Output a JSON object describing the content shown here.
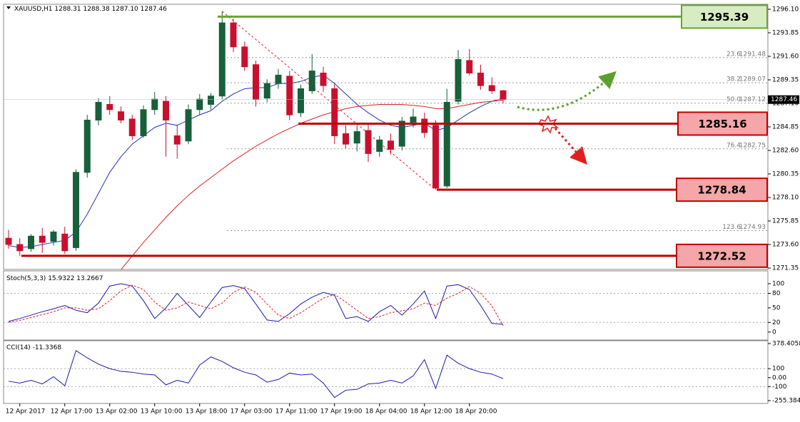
{
  "chart_data": [
    {
      "type": "candlestick",
      "title": "XAUUSD,H1",
      "ohlc_labels": [
        "1288.31",
        "1288.38",
        "1287.10",
        "1287.46"
      ],
      "categories": [
        null,
        "12 Apr 2017",
        null,
        null,
        null,
        "12 Apr 17:00",
        null,
        null,
        null,
        "13 Apr 02:00",
        null,
        null,
        null,
        "13 Apr 10:00",
        null,
        null,
        null,
        "13 Apr 18:00",
        null,
        null,
        null,
        "17 Apr 03:00",
        null,
        null,
        null,
        "17 Apr 11:00",
        null,
        null,
        null,
        "17 Apr 19:00",
        null,
        null,
        null,
        "18 Apr 04:00",
        null,
        null,
        null,
        "18 Apr 12:00",
        null,
        null,
        null,
        "18 Apr 20:00",
        null,
        null,
        null
      ],
      "open": [
        1274.2,
        1273.6,
        1273.2,
        1274.4,
        1273.9,
        1274.6,
        1273.3,
        1280.5,
        1285.5,
        1287.0,
        1286.3,
        1285.6,
        1284.0,
        1286.5,
        1287.3,
        1284.0,
        1283.5,
        1286.5,
        1287.0,
        1287.8,
        1294.8,
        1292.5,
        1290.8,
        1287.6,
        1289.0,
        1289.7,
        1286.2,
        1288.3,
        1290.0,
        1288.5,
        1284.2,
        1283.3,
        1284.5,
        1282.5,
        1283.5,
        1283.0,
        1285.3,
        1285.6,
        1285.0,
        1279.2,
        1287.3,
        1291.2,
        1290.0,
        1288.8,
        1288.31
      ],
      "high": [
        1275.0,
        1274.2,
        1274.6,
        1275.2,
        1275.0,
        1275.3,
        1280.8,
        1286.0,
        1287.6,
        1287.8,
        1286.8,
        1286.0,
        1286.9,
        1288.2,
        1287.8,
        1285.0,
        1287.0,
        1288.0,
        1288.1,
        1295.9,
        1295.2,
        1293.0,
        1291.2,
        1289.4,
        1290.4,
        1290.2,
        1288.9,
        1291.8,
        1290.6,
        1289.0,
        1285.0,
        1285.0,
        1285.2,
        1284.0,
        1284.2,
        1285.8,
        1286.6,
        1286.2,
        1285.5,
        1288.5,
        1292.2,
        1292.3,
        1290.8,
        1289.6,
        1288.38
      ],
      "low": [
        1273.2,
        1272.5,
        1272.9,
        1272.8,
        1273.5,
        1272.7,
        1273.0,
        1280.0,
        1285.0,
        1286.0,
        1285.2,
        1283.6,
        1283.8,
        1286.0,
        1282.0,
        1281.8,
        1283.2,
        1286.0,
        1286.5,
        1287.5,
        1292.0,
        1290.2,
        1286.8,
        1287.2,
        1288.5,
        1285.5,
        1285.8,
        1288.0,
        1288.2,
        1283.2,
        1282.8,
        1282.5,
        1281.5,
        1282.0,
        1282.2,
        1282.6,
        1284.8,
        1283.8,
        1278.84,
        1279.0,
        1287.0,
        1289.8,
        1288.4,
        1288.0,
        1287.1
      ],
      "close": [
        1273.6,
        1273.0,
        1274.4,
        1273.8,
        1274.8,
        1273.0,
        1280.5,
        1285.5,
        1287.2,
        1286.5,
        1285.5,
        1284.0,
        1286.5,
        1287.5,
        1285.5,
        1283.2,
        1286.5,
        1287.5,
        1287.8,
        1294.8,
        1292.5,
        1290.6,
        1287.5,
        1289.0,
        1289.8,
        1286.0,
        1288.5,
        1290.2,
        1288.8,
        1284.0,
        1283.2,
        1284.4,
        1282.3,
        1283.6,
        1282.7,
        1285.4,
        1285.8,
        1284.3,
        1279.0,
        1287.2,
        1291.3,
        1290.0,
        1288.8,
        1288.3,
        1287.46
      ],
      "up_color": "#17603a",
      "down_color": "#c8102e",
      "ma_lines": [
        {
          "color": "#2233bb",
          "values": [
            1273.5,
            1273.3,
            1273.4,
            1273.6,
            1273.8,
            1274.0,
            1274.8,
            1276.5,
            1278.5,
            1280.5,
            1282.0,
            1283.2,
            1284.0,
            1284.8,
            1285.2,
            1285.0,
            1285.5,
            1286.0,
            1286.4,
            1287.3,
            1288.0,
            1288.5,
            1288.6,
            1288.6,
            1289.0,
            1289.0,
            1289.2,
            1289.6,
            1289.8,
            1289.0,
            1288.0,
            1287.0,
            1286.2,
            1285.5,
            1285.0,
            1284.8,
            1285.0,
            1285.2,
            1284.5,
            1284.8,
            1285.5,
            1286.2,
            1286.8,
            1287.3,
            1287.6
          ]
        },
        {
          "color": "#dd2222",
          "values": [
            null,
            null,
            null,
            null,
            null,
            null,
            null,
            null,
            null,
            null,
            1271.2,
            1272.5,
            1273.8,
            1275.0,
            1276.2,
            1277.3,
            1278.3,
            1279.2,
            1280.0,
            1280.8,
            1281.6,
            1282.3,
            1283.0,
            1283.6,
            1284.2,
            1284.7,
            1285.2,
            1285.6,
            1286.0,
            1286.3,
            1286.6,
            1286.8,
            1286.9,
            1287.0,
            1287.0,
            1287.0,
            1286.9,
            1286.8,
            1286.6,
            1286.6,
            1286.8,
            1287.0,
            1287.2,
            1287.3,
            1287.4
          ]
        }
      ],
      "levels": [
        {
          "value": 1295.39,
          "color": "#6aa334",
          "fill": "#d8ecc2"
        },
        {
          "value": 1285.16,
          "color": "#c00000",
          "fill": "#f4a6a8"
        },
        {
          "value": 1278.84,
          "color": "#c00000",
          "fill": "#f4a6a8"
        },
        {
          "value": 1272.52,
          "color": "#c00000",
          "fill": "#f4a6a8"
        }
      ],
      "fib_levels": [
        {
          "label": "23.6",
          "value": 1291.48
        },
        {
          "label": "38.2",
          "value": 1289.07
        },
        {
          "label": "50.0",
          "value": 1287.12
        },
        {
          "label": "76.4",
          "value": 1282.75
        },
        {
          "label": "123.6",
          "value": 1274.93
        }
      ],
      "ylim": [
        1271.35,
        1296.1
      ],
      "yticks": [
        {
          "value": 1296.1,
          "label": "1296.10"
        },
        1293.85,
        {
          "value": 1291.6,
          "label": "1291.60"
        },
        1289.35,
        {
          "value": 1287.1,
          "label": "1287.10"
        },
        1284.85,
        {
          "value": 1282.6,
          "label": "1282.60"
        },
        1280.35,
        {
          "value": 1278.1,
          "label": "1278.10"
        },
        1275.85,
        {
          "value": 1273.6,
          "label": "1273.60"
        },
        1271.35
      ]
    },
    {
      "type": "line",
      "title": "Stoch(5,3,3)",
      "series": [
        {
          "color": "#1a1ab0",
          "style": "solid",
          "values": [
            22,
            28,
            35,
            42,
            48,
            55,
            45,
            40,
            60,
            95,
            100,
            95,
            65,
            28,
            50,
            80,
            55,
            30,
            62,
            92,
            96,
            90,
            58,
            25,
            22,
            38,
            58,
            72,
            82,
            76,
            28,
            32,
            22,
            42,
            55,
            35,
            58,
            85,
            28,
            95,
            98,
            88,
            55,
            18,
            15.9322
          ]
        },
        {
          "color": "#e02020",
          "style": "dashed",
          "values": [
            20,
            24,
            30,
            36,
            42,
            50,
            50,
            45,
            48,
            65,
            85,
            97,
            88,
            62,
            45,
            50,
            62,
            55,
            48,
            60,
            82,
            93,
            82,
            58,
            35,
            28,
            40,
            55,
            70,
            78,
            62,
            45,
            28,
            32,
            40,
            44,
            48,
            60,
            55,
            70,
            80,
            94,
            80,
            54,
            13.2667
          ]
        }
      ],
      "levels": [
        80,
        20
      ],
      "ylim": [
        -15,
        125
      ],
      "yticks": [
        100,
        80,
        50,
        20,
        0
      ]
    },
    {
      "type": "line",
      "title": "CCI(14)",
      "series": [
        {
          "color": "#1a1ab0",
          "style": "solid",
          "values": [
            -40,
            -60,
            -30,
            -70,
            10,
            -90,
            300,
            220,
            150,
            100,
            70,
            60,
            40,
            30,
            -80,
            -30,
            -60,
            140,
            230,
            180,
            110,
            60,
            30,
            -50,
            -20,
            50,
            30,
            40,
            -60,
            -220,
            -140,
            -130,
            -70,
            -60,
            -30,
            -60,
            20,
            200,
            -120,
            250,
            160,
            100,
            60,
            40,
            -11.3368
          ]
        }
      ],
      "levels": [
        100,
        -100
      ],
      "ylim": [
        -255.3847,
        378.4058
      ],
      "yticks": [
        378.4058,
        100,
        {
          "value": 0,
          "label": "0.00"
        },
        -100,
        -255.3847
      ]
    }
  ]
}
